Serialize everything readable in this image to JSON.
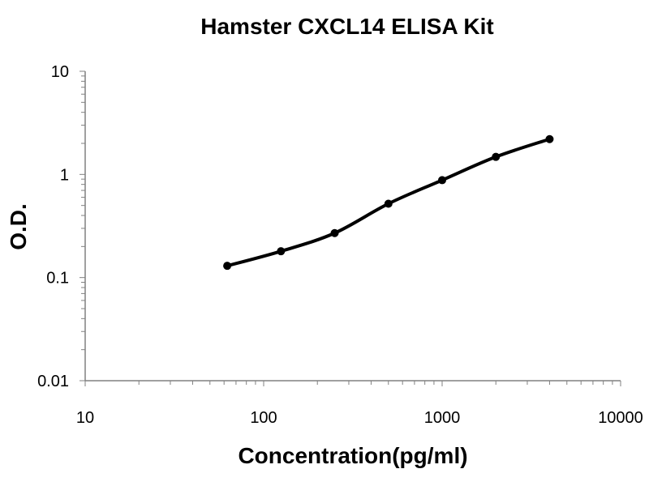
{
  "chart_data": {
    "type": "scatter",
    "title": "Hamster CXCL14 ELISA Kit",
    "xlabel": "Concentration(pg/ml)",
    "ylabel": "O.D.",
    "x_scale": "log",
    "y_scale": "log",
    "xlim": [
      10,
      10000
    ],
    "ylim": [
      0.01,
      10
    ],
    "x_ticks": [
      {
        "value": 10,
        "label": "10"
      },
      {
        "value": 100,
        "label": "100"
      },
      {
        "value": 1000,
        "label": "1000"
      },
      {
        "value": 10000,
        "label": "10000"
      }
    ],
    "y_ticks": [
      {
        "value": 0.01,
        "label": "0.01"
      },
      {
        "value": 0.1,
        "label": "0.1"
      },
      {
        "value": 1,
        "label": "1"
      },
      {
        "value": 10,
        "label": "10"
      }
    ],
    "grid": false,
    "legend": "none",
    "fitted_curve": true,
    "series": [
      {
        "x": [
          62.5,
          125,
          250,
          500,
          1000,
          2000,
          4000
        ],
        "y": [
          0.13,
          0.18,
          0.27,
          0.52,
          0.88,
          1.48,
          2.2
        ]
      }
    ],
    "colors": {
      "line": "#000000",
      "points": "#000000",
      "axis": "#808080"
    }
  }
}
